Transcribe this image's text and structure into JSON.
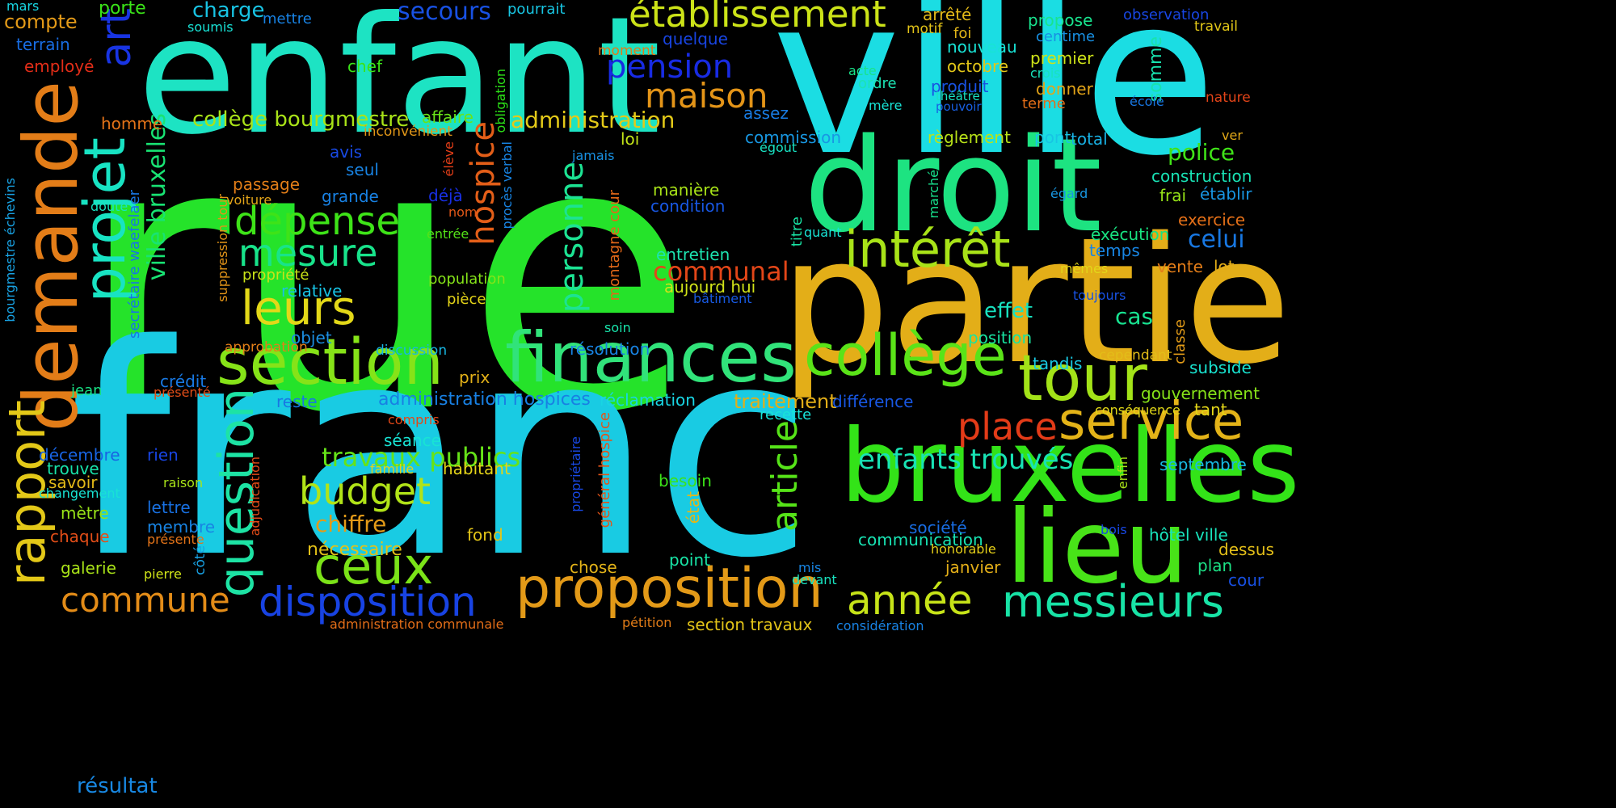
{
  "words": [
    {
      "text": "rue",
      "color": "#25e32a"
    },
    {
      "text": "franc",
      "color": "#19cbe3"
    },
    {
      "text": "ville",
      "color": "#1bdde3"
    },
    {
      "text": "enfant",
      "color": "#1de3c3"
    },
    {
      "text": "partie",
      "color": "#e3ae18"
    },
    {
      "text": "droit",
      "color": "#1de381"
    },
    {
      "text": "demande",
      "color": "#e37d18"
    },
    {
      "text": "bruxelles",
      "color": "#33e318"
    },
    {
      "text": "lieu",
      "color": "#48e318"
    },
    {
      "text": "finances",
      "color": "#31e37a"
    },
    {
      "text": "section",
      "color": "#86e318"
    },
    {
      "text": "projet",
      "color": "#18e3c3"
    },
    {
      "text": "collège",
      "color": "#5ae318"
    },
    {
      "text": "tour",
      "color": "#a3e318"
    },
    {
      "text": "proposition",
      "color": "#e39a18"
    },
    {
      "text": "rapport",
      "color": "#e3c818"
    },
    {
      "text": "service",
      "color": "#e3b318"
    },
    {
      "text": "question",
      "color": "#1de3a4"
    },
    {
      "text": "intérêt",
      "color": "#a8e318"
    },
    {
      "text": "établissement",
      "color": "#cce318"
    },
    {
      "text": "messieurs",
      "color": "#18e3a6"
    },
    {
      "text": "art",
      "color": "#1834e3"
    },
    {
      "text": "ceux",
      "color": "#7be318"
    },
    {
      "text": "leurs",
      "color": "#e3d818"
    },
    {
      "text": "année",
      "color": "#c6e318"
    },
    {
      "text": "disposition",
      "color": "#1843e3"
    },
    {
      "text": "dépense",
      "color": "#3ee318"
    },
    {
      "text": "mesure",
      "color": "#18e38b"
    },
    {
      "text": "article",
      "color": "#56e318"
    },
    {
      "text": "budget",
      "color": "#b1e318"
    },
    {
      "text": "place",
      "color": "#e33b18"
    },
    {
      "text": "commune",
      "color": "#e38c18"
    },
    {
      "text": "maison",
      "color": "#e39418"
    },
    {
      "text": "pension",
      "color": "#182be3"
    },
    {
      "text": "personne",
      "color": "#1ce393"
    },
    {
      "text": "hospice",
      "color": "#e35e18"
    },
    {
      "text": "enfants trouvés",
      "color": "#18e3b5"
    },
    {
      "text": "travaux publics",
      "color": "#66e318"
    },
    {
      "text": "communal",
      "color": "#e34618"
    },
    {
      "text": "ville bruxelles",
      "color": "#18e373"
    },
    {
      "text": "secours",
      "color": "#1851e3"
    },
    {
      "text": "police",
      "color": "#40e318"
    },
    {
      "text": "celui",
      "color": "#1878e3"
    },
    {
      "text": "traitement",
      "color": "#e3ae18"
    },
    {
      "text": "administration",
      "color": "#e3c918"
    },
    {
      "text": "collège bourgmestre",
      "color": "#a9e318"
    },
    {
      "text": "charge",
      "color": "#18c3e3"
    },
    {
      "text": "effet",
      "color": "#18e3c1"
    },
    {
      "text": "cas",
      "color": "#18e391"
    },
    {
      "text": "chiffre",
      "color": "#e39a18"
    },
    {
      "text": "nécessaire",
      "color": "#e3c118"
    },
    {
      "text": "administration hospices",
      "color": "#1880e3"
    },
    {
      "text": "résultat",
      "color": "#1888e3"
    },
    {
      "text": "compte",
      "color": "#e39a18"
    },
    {
      "text": "porte",
      "color": "#3ae318"
    },
    {
      "text": "mars",
      "color": "#18d6e3"
    },
    {
      "text": "mettre",
      "color": "#1882e3"
    },
    {
      "text": "soumis",
      "color": "#18e3d6"
    },
    {
      "text": "terrain",
      "color": "#186de3"
    },
    {
      "text": "employé",
      "color": "#e32d18"
    },
    {
      "text": "homme",
      "color": "#e37318"
    },
    {
      "text": "chef",
      "color": "#3ae318"
    },
    {
      "text": "affaire",
      "color": "#69e318"
    },
    {
      "text": "obligation",
      "color": "#2ce318"
    },
    {
      "text": "inconvénient",
      "color": "#e39818"
    },
    {
      "text": "pourrait",
      "color": "#18c6e3"
    },
    {
      "text": "moment",
      "color": "#e37a18"
    },
    {
      "text": "quelque",
      "color": "#1845e3"
    },
    {
      "text": "arrêté",
      "color": "#e3ba18"
    },
    {
      "text": "motif",
      "color": "#e3c418"
    },
    {
      "text": "foi",
      "color": "#e3b618"
    },
    {
      "text": "nouveau",
      "color": "#18e3d6"
    },
    {
      "text": "octobre",
      "color": "#e3c618"
    },
    {
      "text": "produit",
      "color": "#1852e3"
    },
    {
      "text": "théâtre",
      "color": "#18e3c4"
    },
    {
      "text": "pouvoir",
      "color": "#1860e3"
    },
    {
      "text": "terme",
      "color": "#e36d18"
    },
    {
      "text": "acte",
      "color": "#18e38a"
    },
    {
      "text": "ordre",
      "color": "#1ce3b3"
    },
    {
      "text": "mère",
      "color": "#18e3d6"
    },
    {
      "text": "propose",
      "color": "#18e38e"
    },
    {
      "text": "centime",
      "color": "#1890e3"
    },
    {
      "text": "premier",
      "color": "#cfe318"
    },
    {
      "text": "crois",
      "color": "#18e3bd"
    },
    {
      "text": "donner",
      "color": "#e3a418"
    },
    {
      "text": "observation",
      "color": "#1846e3"
    },
    {
      "text": "travail",
      "color": "#e3c818"
    },
    {
      "text": "somme",
      "color": "#18e3ad"
    },
    {
      "text": "école",
      "color": "#1877e3"
    },
    {
      "text": "nature",
      "color": "#e34418"
    },
    {
      "text": "assez",
      "color": "#187ce3"
    },
    {
      "text": "commission",
      "color": "#1898e3"
    },
    {
      "text": "égout",
      "color": "#18e3c4"
    },
    {
      "text": "loi",
      "color": "#c2e318"
    },
    {
      "text": "règlement",
      "color": "#b9e318"
    },
    {
      "text": "pont",
      "color": "#18c5e3"
    },
    {
      "text": "total",
      "color": "#18b0e3"
    },
    {
      "text": "ver",
      "color": "#e3a918"
    },
    {
      "text": "avis",
      "color": "#1849e3"
    },
    {
      "text": "seul",
      "color": "#1883e3"
    },
    {
      "text": "grande",
      "color": "#1881e3"
    },
    {
      "text": "déjà",
      "color": "#182fe3"
    },
    {
      "text": "jamais",
      "color": "#1891e3"
    },
    {
      "text": "élève",
      "color": "#e33e18"
    },
    {
      "text": "procès verbal",
      "color": "#1884e3"
    },
    {
      "text": "nom",
      "color": "#e35818"
    },
    {
      "text": "entrée",
      "color": "#54e318"
    },
    {
      "text": "manière",
      "color": "#a8e318"
    },
    {
      "text": "condition",
      "color": "#1857e3"
    },
    {
      "text": "marché",
      "color": "#18e38e"
    },
    {
      "text": "égard",
      "color": "#1898e3"
    },
    {
      "text": "construction",
      "color": "#19e3b5"
    },
    {
      "text": "frai",
      "color": "#96e318"
    },
    {
      "text": "établir",
      "color": "#1896e3"
    },
    {
      "text": "exercice",
      "color": "#e36f18"
    },
    {
      "text": "exécution",
      "color": "#18e381"
    },
    {
      "text": "temps",
      "color": "#1885e3"
    },
    {
      "text": "titre",
      "color": "#18e3a4"
    },
    {
      "text": "quant",
      "color": "#18e3d6"
    },
    {
      "text": "passage",
      "color": "#e37e18"
    },
    {
      "text": "voiture",
      "color": "#e3a418"
    },
    {
      "text": "doute",
      "color": "#18e3c2"
    },
    {
      "text": "secrétaire waefelaer",
      "color": "#1875e3"
    },
    {
      "text": "bourgmestre échevins",
      "color": "#18a2e3"
    },
    {
      "text": "suppression tour",
      "color": "#e39418"
    },
    {
      "text": "propriété",
      "color": "#cae318"
    },
    {
      "text": "relative",
      "color": "#18c2e3"
    },
    {
      "text": "population",
      "color": "#85e318"
    },
    {
      "text": "pièce",
      "color": "#e3d318"
    },
    {
      "text": "montagne cour",
      "color": "#e36818"
    },
    {
      "text": "entretien",
      "color": "#1de3b0"
    },
    {
      "text": "aujourd hui",
      "color": "#d1e318"
    },
    {
      "text": "bâtiment",
      "color": "#185ae3"
    },
    {
      "text": "mêmes",
      "color": "#e3d618"
    },
    {
      "text": "toujours",
      "color": "#1852e3"
    },
    {
      "text": "vente",
      "color": "#e37d18"
    },
    {
      "text": "lot",
      "color": "#e3ad18"
    },
    {
      "text": "objet",
      "color": "#1c8fe3"
    },
    {
      "text": "soin",
      "color": "#18e3ab"
    },
    {
      "text": "approbation",
      "color": "#e37f18"
    },
    {
      "text": "discussion",
      "color": "#18b7e3"
    },
    {
      "text": "résolution",
      "color": "#1883e3"
    },
    {
      "text": "position",
      "color": "#18e3a0"
    },
    {
      "text": "tandis",
      "color": "#18c9e3"
    },
    {
      "text": "cependant",
      "color": "#e3bd18"
    },
    {
      "text": "classe",
      "color": "#e39c18"
    },
    {
      "text": "subside",
      "color": "#18e3d0"
    },
    {
      "text": "crédit",
      "color": "#1879e3"
    },
    {
      "text": "présenté",
      "color": "#e34e18"
    },
    {
      "text": "prix",
      "color": "#e3b118"
    },
    {
      "text": "réclamation",
      "color": "#18d5e3"
    },
    {
      "text": "reste",
      "color": "#1877e3"
    },
    {
      "text": "différence",
      "color": "#1857e3"
    },
    {
      "text": "recette",
      "color": "#18e3d8"
    },
    {
      "text": "gouvernement",
      "color": "#87e318"
    },
    {
      "text": "tant",
      "color": "#e3d618"
    },
    {
      "text": "conséquence",
      "color": "#e3d918"
    },
    {
      "text": "jean",
      "color": "#18e386"
    },
    {
      "text": "compris",
      "color": "#e34718"
    },
    {
      "text": "séance",
      "color": "#18e3d4"
    },
    {
      "text": "décembre",
      "color": "#1864e3"
    },
    {
      "text": "rien",
      "color": "#1845e3"
    },
    {
      "text": "trouve",
      "color": "#18e3aa"
    },
    {
      "text": "savoir",
      "color": "#e3b918"
    },
    {
      "text": "changement",
      "color": "#18e3d4"
    },
    {
      "text": "raison",
      "color": "#a8e318"
    },
    {
      "text": "habitant",
      "color": "#e3d318"
    },
    {
      "text": "famille",
      "color": "#e3d418"
    },
    {
      "text": "adjudication",
      "color": "#e34b18"
    },
    {
      "text": "propriétaire",
      "color": "#1848e3"
    },
    {
      "text": "général hospice",
      "color": "#e35418"
    },
    {
      "text": "besoin",
      "color": "#3be318"
    },
    {
      "text": "état",
      "color": "#e3b618"
    },
    {
      "text": "septembre",
      "color": "#18bbe3"
    },
    {
      "text": "enfin",
      "color": "#a9e318"
    },
    {
      "text": "mètre",
      "color": "#98e318"
    },
    {
      "text": "lettre",
      "color": "#1871e3"
    },
    {
      "text": "membre",
      "color": "#1884e3"
    },
    {
      "text": "présente",
      "color": "#e37318"
    },
    {
      "text": "chaque",
      "color": "#e34e18"
    },
    {
      "text": "fond",
      "color": "#e3c518"
    },
    {
      "text": "société",
      "color": "#186de3"
    },
    {
      "text": "communication",
      "color": "#18e3b3"
    },
    {
      "text": "bois",
      "color": "#1847e3"
    },
    {
      "text": "hôtel ville",
      "color": "#18e3bc"
    },
    {
      "text": "honorable",
      "color": "#e3cd18"
    },
    {
      "text": "dessus",
      "color": "#e3be18"
    },
    {
      "text": "plan",
      "color": "#1ce386"
    },
    {
      "text": "cour",
      "color": "#1850e3"
    },
    {
      "text": "janvier",
      "color": "#e3ae18"
    },
    {
      "text": "point",
      "color": "#18e3a5"
    },
    {
      "text": "chose",
      "color": "#e3b318"
    },
    {
      "text": "mis",
      "color": "#1885e3"
    },
    {
      "text": "devant",
      "color": "#18e3c0"
    },
    {
      "text": "côté",
      "color": "#18a1e3"
    },
    {
      "text": "galerie",
      "color": "#a9e318"
    },
    {
      "text": "pierre",
      "color": "#d0e318"
    },
    {
      "text": "section travaux",
      "color": "#e3c418"
    },
    {
      "text": "pétition",
      "color": "#e37d18"
    },
    {
      "text": "considération",
      "color": "#1882e3"
    },
    {
      "text": "administration communale",
      "color": "#e36e18"
    }
  ]
}
